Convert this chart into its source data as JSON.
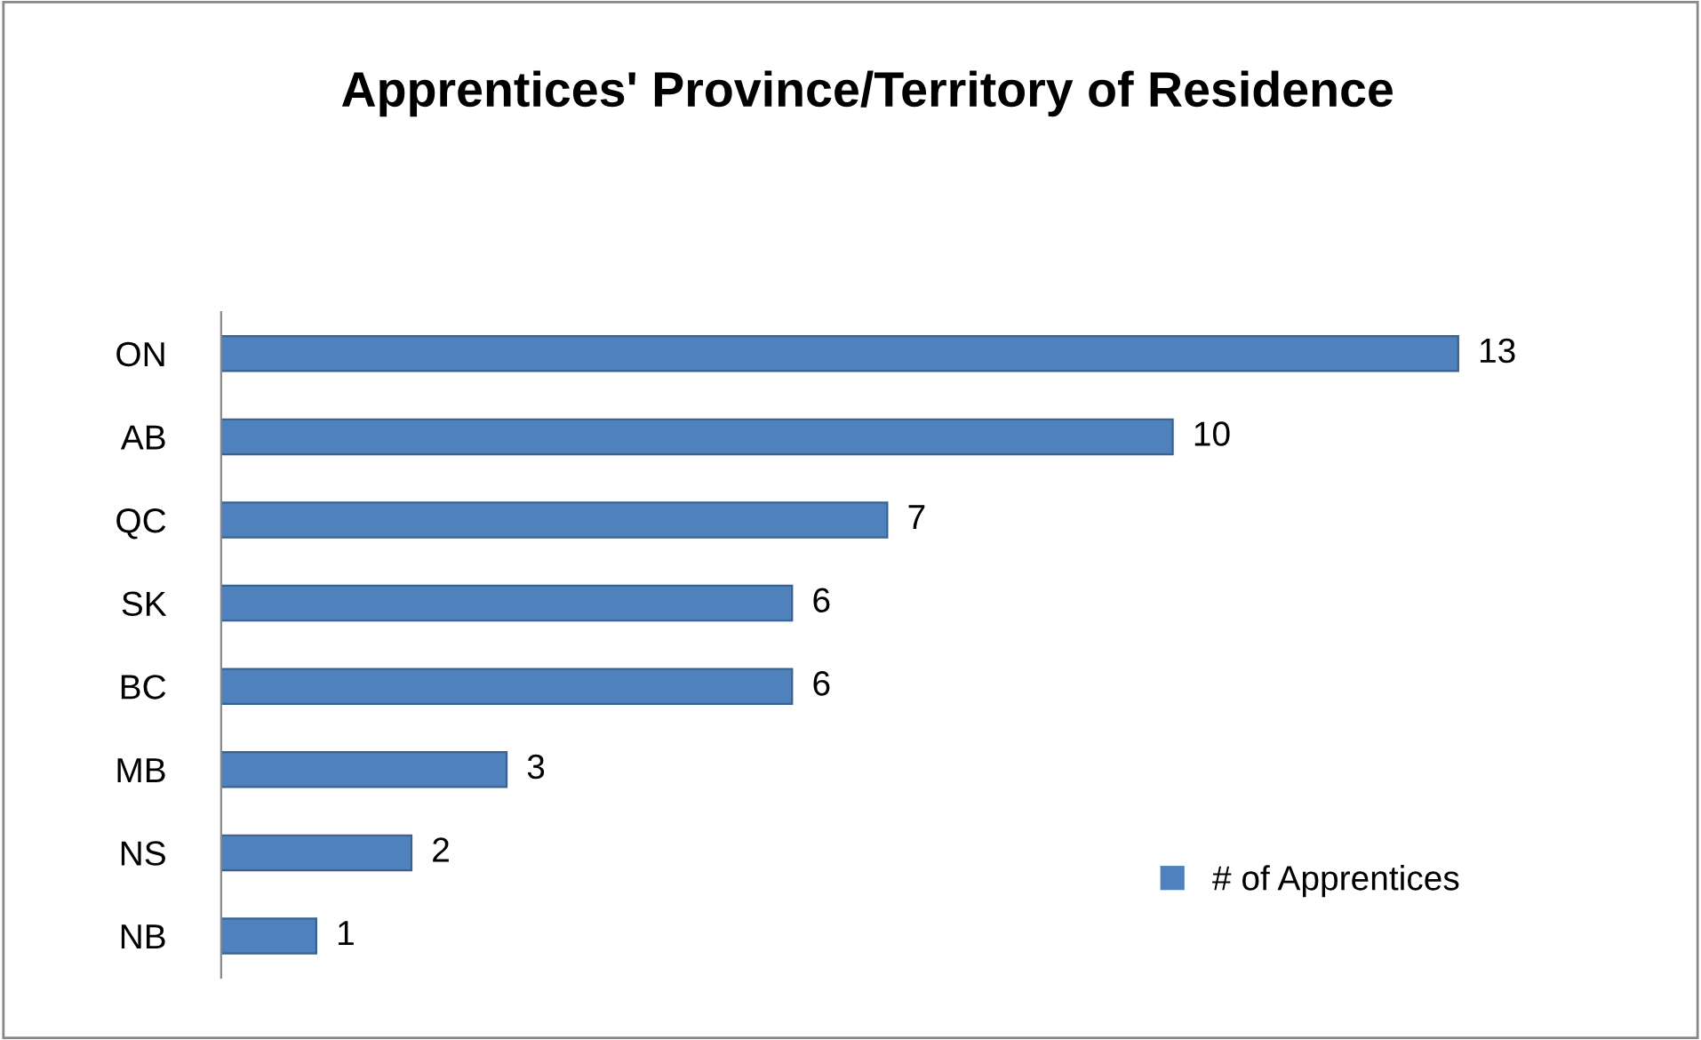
{
  "chart_data": {
    "type": "bar",
    "orientation": "horizontal",
    "title": "Apprentices' Province/Territory of Residence",
    "categories": [
      "ON",
      "AB",
      "QC",
      "SK",
      "BC",
      "MB",
      "NS",
      "NB"
    ],
    "series": [
      {
        "name": "# of Apprentices",
        "color": "#4f81bd",
        "values": [
          13,
          10,
          7,
          6,
          6,
          3,
          2,
          1
        ]
      }
    ],
    "data_labels": true,
    "legend": "bottom right",
    "grid": false
  }
}
